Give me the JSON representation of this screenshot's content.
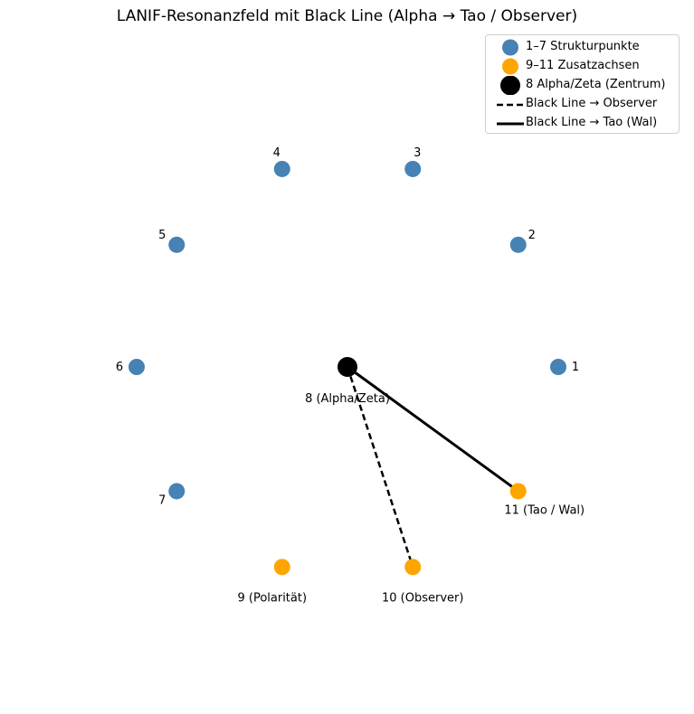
{
  "chart_data": {
    "type": "scatter",
    "title": "LANIF-Resonanzfeld mit Black Line (Alpha → Tao / Observer)",
    "xlim": [
      -1.6,
      1.6
    ],
    "ylim": [
      -1.6,
      1.6
    ],
    "axes_visible": false,
    "legend_position": "top-right",
    "series": [
      {
        "name": "1–7 Strukturpunkte",
        "color": "#4682b4",
        "points": [
          {
            "label": "1",
            "x": 1.0,
            "y": 0.0
          },
          {
            "label": "2",
            "x": 0.81,
            "y": 0.58
          },
          {
            "label": "3",
            "x": 0.31,
            "y": 0.94
          },
          {
            "label": "4",
            "x": -0.31,
            "y": 0.94
          },
          {
            "label": "5",
            "x": -0.81,
            "y": 0.58
          },
          {
            "label": "6",
            "x": -1.0,
            "y": 0.0
          },
          {
            "label": "7",
            "x": -0.81,
            "y": -0.59
          }
        ]
      },
      {
        "name": "9–11 Zusatzachsen",
        "color": "#ffa500",
        "points": [
          {
            "label": "9 (Polarität)",
            "x": -0.31,
            "y": -0.95
          },
          {
            "label": "10 (Observer)",
            "x": 0.31,
            "y": -0.95
          },
          {
            "label": "11 (Tao / Wal)",
            "x": 0.81,
            "y": -0.59
          }
        ]
      },
      {
        "name": "8 Alpha/Zeta (Zentrum)",
        "color": "#000000",
        "points": [
          {
            "label": "8 (Alpha/Zeta)",
            "x": 0.0,
            "y": 0.0
          }
        ]
      }
    ],
    "lines": [
      {
        "name": "Black Line → Observer",
        "style": "dashed",
        "color": "#000000",
        "from": [
          0.0,
          0.0
        ],
        "to": [
          0.31,
          -0.95
        ]
      },
      {
        "name": "Black Line → Tao (Wal)",
        "style": "solid",
        "color": "#000000",
        "from": [
          0.0,
          0.0
        ],
        "to": [
          0.81,
          -0.59
        ]
      }
    ]
  }
}
